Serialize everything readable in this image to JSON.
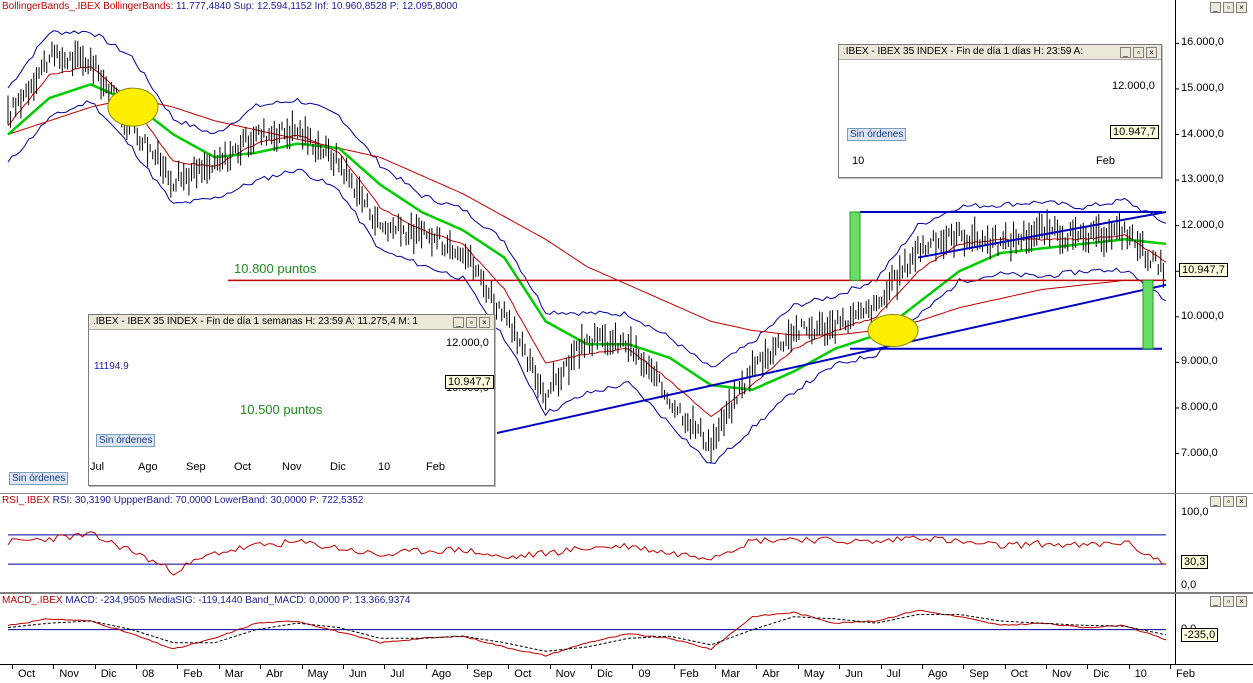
{
  "main": {
    "header": {
      "prefix": "BollingerBands_.IBEX",
      "indicator": "BollingerBands:",
      "values": "11.777,4840  Sup: 12.594,1152  Inf: 10.960,8528  P: 12.095,8000"
    },
    "y_ticks": [
      "16.000,0",
      "15.000,0",
      "14.000,0",
      "13.000,0",
      "12.000,0",
      "11.000,0",
      "10.000,0",
      "9.000,0",
      "8.000,0",
      "7.000,0"
    ],
    "last_price": "10.947,7",
    "annotation_red": "10.800 puntos",
    "orders_label": "Sin órdenes"
  },
  "rsi": {
    "header": {
      "prefix": "RSI_.IBEX",
      "values": "RSI: 30,3190  UppperBand: 70,0000  LowerBand: 30,0000  P: 722,5352"
    },
    "y_ticks": [
      "100,0",
      "0,0"
    ],
    "last_value": "30,3"
  },
  "macd": {
    "header": {
      "prefix": "MACD_.IBEX",
      "values": "MACD: -234,9505  MediaSIG: -119,1440  Band_MACD: 0,0000  P: 13.366,9374"
    },
    "y_ticks": [
      "0,0"
    ],
    "last_value": "-235,0"
  },
  "x_labels": [
    "Oct",
    "Nov",
    "Dic",
    "08",
    "Feb",
    "Mar",
    "Abr",
    "May",
    "Jun",
    "Jul",
    "Ago",
    "Sep",
    "Oct",
    "Nov",
    "Dic",
    "09",
    "Feb",
    "Mar",
    "Abr",
    "May",
    "Jun",
    "Jul",
    "Ago",
    "Sep",
    "Oct",
    "Nov",
    "Dic",
    "10",
    "Feb"
  ],
  "inset_weekly": {
    "title": ".IBEX - IBEX 35 INDEX - Fin de día 1 semanas  H: 23:59  A: 11.275,4  M: 1",
    "level_label": "11194.9",
    "annotation": "10.500 puntos",
    "orders_label": "Sin órdenes",
    "y_ticks": [
      "12.000,0",
      "10.000,0"
    ],
    "last_price": "10.947,7",
    "x_labels": [
      "Jul",
      "Ago",
      "Sep",
      "Oct",
      "Nov",
      "Dic",
      "10",
      "Feb"
    ]
  },
  "inset_daily": {
    "title": ".IBEX - IBEX 35 INDEX - Fin de día 1 días  H: 23:59  A:",
    "orders_label": "Sin órdenes",
    "y_ticks": [
      "12.000,0"
    ],
    "last_price": "10.947,7",
    "x_labels": [
      "10",
      "Feb"
    ]
  },
  "chart_data": [
    {
      "type": "line",
      "title": "BollingerBands_.IBEX",
      "ylim": [
        6200,
        16600
      ],
      "x": [
        "Oct",
        "Nov",
        "Dic",
        "08",
        "Feb",
        "Mar",
        "Abr",
        "May",
        "Jun",
        "Jul",
        "Ago",
        "Sep",
        "Oct",
        "Nov",
        "Dic",
        "09",
        "Feb",
        "Mar",
        "Abr",
        "May",
        "Jun",
        "Jul",
        "Ago",
        "Sep",
        "Oct",
        "Nov",
        "Dic",
        "10",
        "Feb"
      ],
      "series": [
        {
          "values": [
            14400,
            15700,
            15600,
            14200,
            13000,
            13300,
            14000,
            14100,
            13400,
            12000,
            11800,
            11500,
            10000,
            8300,
            9500,
            9400,
            8200,
            7200,
            8900,
            9700,
            9800,
            10200,
            11500,
            11800,
            11600,
            11900,
            11700,
            11900,
            10948
          ]
        },
        {
          "values": [
            14200,
            15300,
            15500,
            14700,
            13400,
            13300,
            13800,
            14000,
            13600,
            12400,
            11900,
            11600,
            10600,
            9000,
            9200,
            9300,
            8600,
            7800,
            8500,
            9300,
            9700,
            10000,
            11000,
            11600,
            11700,
            11700,
            11700,
            11800,
            11200
          ]
        },
        {
          "values": [
            14000,
            14800,
            15100,
            14700,
            14000,
            13500,
            13600,
            13800,
            13700,
            12900,
            12300,
            11900,
            11300,
            9900,
            9400,
            9400,
            9100,
            8500,
            8400,
            8800,
            9300,
            9600,
            10300,
            11000,
            11400,
            11500,
            11600,
            11700,
            11600
          ]
        },
        {
          "values": [
            14000,
            14300,
            14600,
            14800,
            14600,
            14300,
            14100,
            13900,
            13700,
            13500,
            13100,
            12700,
            12200,
            11700,
            11100,
            10700,
            10300,
            9900,
            9700,
            9600,
            9600,
            9700,
            9900,
            10200,
            10400,
            10600,
            10700,
            10800,
            10800
          ]
        }
      ],
      "horizontal_levels": [
        12300,
        10800,
        9300
      ],
      "annotations": [
        "10.800 puntos"
      ]
    },
    {
      "type": "line",
      "title": "RSI_.IBEX",
      "ylim": [
        0,
        100
      ],
      "bands": [
        70,
        30
      ],
      "series": [
        {
          "values": [
            60,
            65,
            70,
            48,
            20,
            45,
            55,
            60,
            52,
            42,
            48,
            50,
            38,
            45,
            52,
            55,
            45,
            40,
            62,
            65,
            62,
            60,
            68,
            60,
            55,
            58,
            55,
            60,
            30
          ]
        }
      ]
    },
    {
      "type": "line",
      "title": "MACD_.IBEX",
      "series": [
        {
          "values": [
            100,
            250,
            200,
            -100,
            -450,
            -200,
            150,
            200,
            -50,
            -300,
            -200,
            -150,
            -400,
            -600,
            -300,
            -100,
            -200,
            -450,
            300,
            400,
            150,
            200,
            450,
            300,
            100,
            150,
            50,
            100,
            -235
          ]
        },
        {
          "values": [
            50,
            150,
            200,
            0,
            -300,
            -300,
            0,
            150,
            50,
            -200,
            -200,
            -150,
            -300,
            -500,
            -400,
            -200,
            -150,
            -350,
            0,
            300,
            250,
            150,
            350,
            350,
            200,
            150,
            100,
            80,
            -119
          ]
        }
      ]
    }
  ],
  "colors": {
    "price": "#000000",
    "bands": "#0000a0",
    "ma_short": "#c00000",
    "ma_mid": "#00cc00",
    "ma_long": "#c00000",
    "trend": "#0000c0",
    "level_red": "#c00000",
    "green_bar": "#66dd66",
    "ellipse": "#ffee00"
  }
}
